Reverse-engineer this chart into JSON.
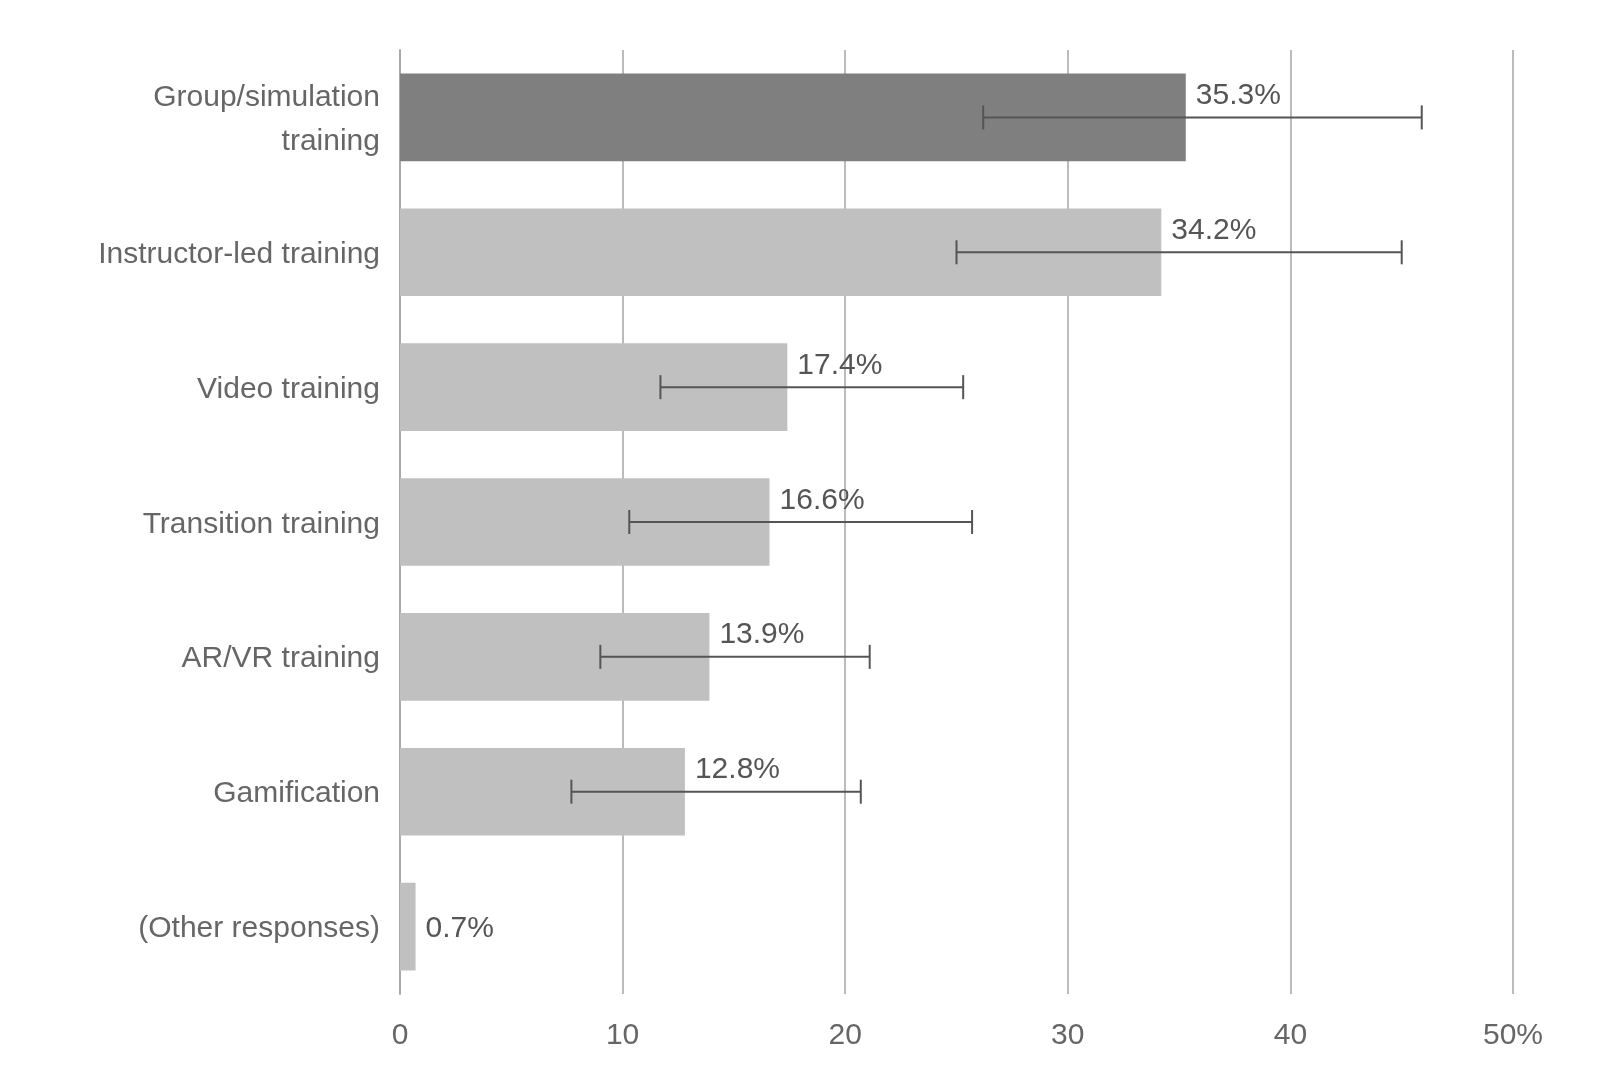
{
  "chart_data": {
    "type": "bar",
    "orientation": "horizontal",
    "categories": [
      "Group/simulation training",
      "Instructor-led training",
      "Video training",
      "Transition training",
      "AR/VR training",
      "Gamification",
      "(Other responses)"
    ],
    "values": [
      35.3,
      34.2,
      17.4,
      16.6,
      13.9,
      12.8,
      0.7
    ],
    "colors": [
      "#7f7f7f",
      "#c0c0c0",
      "#c0c0c0",
      "#c0c0c0",
      "#c0c0c0",
      "#c0c0c0",
      "#c0c0c0"
    ],
    "errors": [
      [
        26.2,
        45.9
      ],
      [
        25.0,
        45.0
      ],
      [
        11.7,
        25.3
      ],
      [
        10.3,
        25.7
      ],
      [
        9.0,
        21.1
      ],
      [
        7.7,
        20.7
      ],
      null
    ],
    "value_labels": [
      "35.3%",
      "34.2%",
      "17.4%",
      "16.6%",
      "13.9%",
      "12.8%",
      "0.7%"
    ],
    "xlim": [
      0,
      50
    ],
    "xticks": [
      0,
      10,
      20,
      30,
      40,
      {
        "value": 50,
        "label": "50%"
      }
    ],
    "grid": "x"
  }
}
